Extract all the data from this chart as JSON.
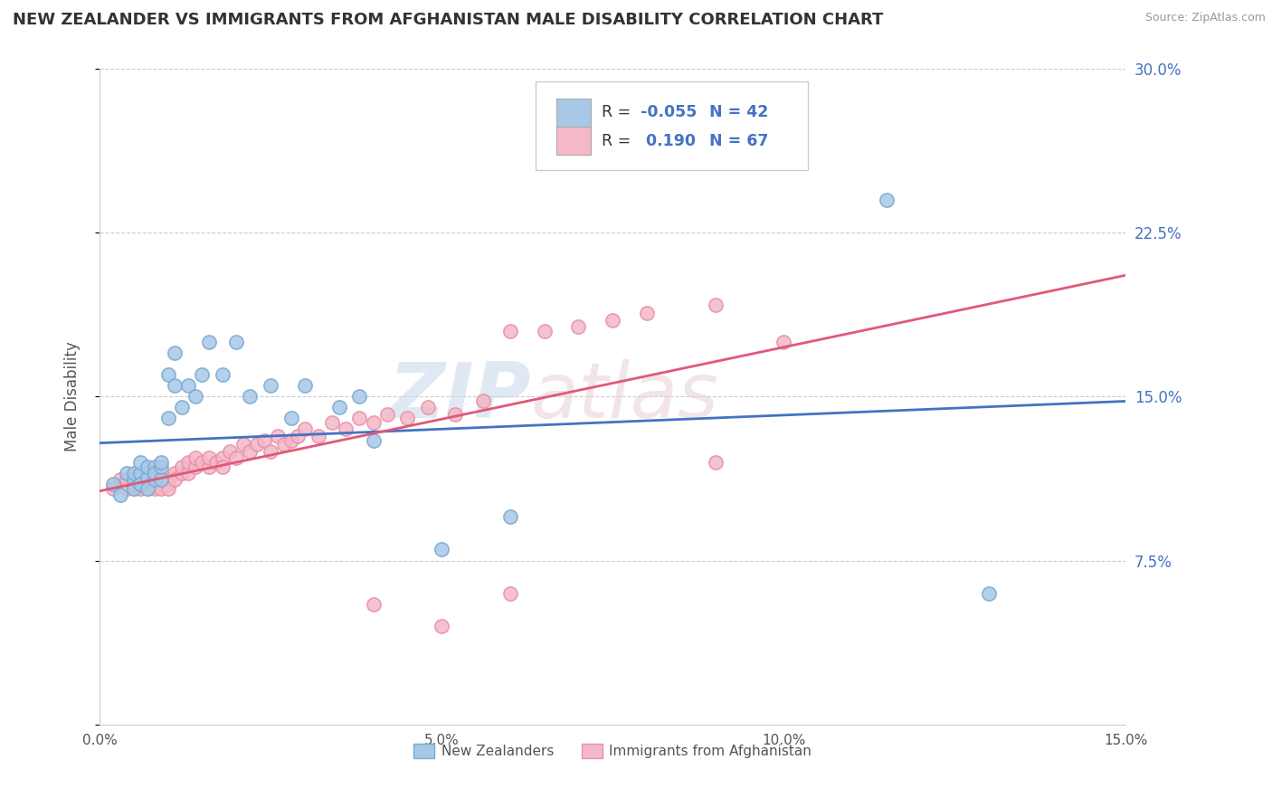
{
  "title": "NEW ZEALANDER VS IMMIGRANTS FROM AFGHANISTAN MALE DISABILITY CORRELATION CHART",
  "source": "Source: ZipAtlas.com",
  "ylabel": "Male Disability",
  "xlim": [
    0.0,
    0.15
  ],
  "ylim": [
    0.0,
    0.3
  ],
  "ytick_vals": [
    0.0,
    0.075,
    0.15,
    0.225,
    0.3
  ],
  "ytick_labels": [
    "",
    "7.5%",
    "15.0%",
    "22.5%",
    "30.0%"
  ],
  "xtick_vals": [
    0.0,
    0.05,
    0.1,
    0.15
  ],
  "xtick_labels": [
    "0.0%",
    "5.0%",
    "10.0%",
    "15.0%"
  ],
  "series1_color": "#a8c8e8",
  "series2_color": "#f4b8c8",
  "series1_edge": "#7aaad0",
  "series2_edge": "#e890a8",
  "trendline1_color": "#4472c4",
  "trendline2_color": "#e05878",
  "watermark_zip": "ZIP",
  "watermark_atlas": "atlas",
  "series1_label": "New Zealanders",
  "series2_label": "Immigrants from Afghanistan",
  "legend_r1_label": "R =",
  "legend_r1_val": "-0.055",
  "legend_n1": "N = 42",
  "legend_r2_label": "R =",
  "legend_r2_val": "0.190",
  "legend_n2": "N = 67",
  "nz_x": [
    0.002,
    0.003,
    0.004,
    0.005,
    0.005,
    0.005,
    0.006,
    0.006,
    0.006,
    0.006,
    0.007,
    0.007,
    0.007,
    0.008,
    0.008,
    0.008,
    0.008,
    0.009,
    0.009,
    0.009,
    0.01,
    0.01,
    0.011,
    0.011,
    0.012,
    0.013,
    0.014,
    0.015,
    0.016,
    0.018,
    0.02,
    0.022,
    0.025,
    0.028,
    0.03,
    0.035,
    0.038,
    0.04,
    0.05,
    0.06,
    0.115,
    0.13
  ],
  "nz_y": [
    0.11,
    0.105,
    0.115,
    0.112,
    0.108,
    0.115,
    0.11,
    0.115,
    0.12,
    0.11,
    0.113,
    0.118,
    0.108,
    0.112,
    0.115,
    0.118,
    0.115,
    0.112,
    0.118,
    0.12,
    0.14,
    0.16,
    0.155,
    0.17,
    0.145,
    0.155,
    0.15,
    0.16,
    0.175,
    0.16,
    0.175,
    0.15,
    0.155,
    0.14,
    0.155,
    0.145,
    0.15,
    0.13,
    0.08,
    0.095,
    0.24,
    0.06
  ],
  "afg_x": [
    0.002,
    0.003,
    0.004,
    0.004,
    0.005,
    0.005,
    0.005,
    0.006,
    0.006,
    0.006,
    0.007,
    0.007,
    0.008,
    0.008,
    0.008,
    0.009,
    0.009,
    0.01,
    0.01,
    0.01,
    0.011,
    0.011,
    0.012,
    0.012,
    0.013,
    0.013,
    0.014,
    0.014,
    0.015,
    0.016,
    0.016,
    0.017,
    0.018,
    0.018,
    0.019,
    0.02,
    0.021,
    0.022,
    0.023,
    0.024,
    0.025,
    0.026,
    0.027,
    0.028,
    0.029,
    0.03,
    0.032,
    0.034,
    0.036,
    0.038,
    0.04,
    0.042,
    0.045,
    0.048,
    0.052,
    0.056,
    0.06,
    0.065,
    0.07,
    0.075,
    0.08,
    0.09,
    0.1,
    0.06,
    0.04,
    0.09,
    0.05
  ],
  "afg_y": [
    0.108,
    0.112,
    0.108,
    0.112,
    0.11,
    0.108,
    0.112,
    0.11,
    0.108,
    0.112,
    0.108,
    0.112,
    0.11,
    0.108,
    0.112,
    0.11,
    0.108,
    0.112,
    0.11,
    0.108,
    0.115,
    0.112,
    0.115,
    0.118,
    0.115,
    0.12,
    0.118,
    0.122,
    0.12,
    0.118,
    0.122,
    0.12,
    0.122,
    0.118,
    0.125,
    0.122,
    0.128,
    0.125,
    0.128,
    0.13,
    0.125,
    0.132,
    0.128,
    0.13,
    0.132,
    0.135,
    0.132,
    0.138,
    0.135,
    0.14,
    0.138,
    0.142,
    0.14,
    0.145,
    0.142,
    0.148,
    0.18,
    0.18,
    0.182,
    0.185,
    0.188,
    0.192,
    0.175,
    0.06,
    0.055,
    0.12,
    0.045
  ]
}
